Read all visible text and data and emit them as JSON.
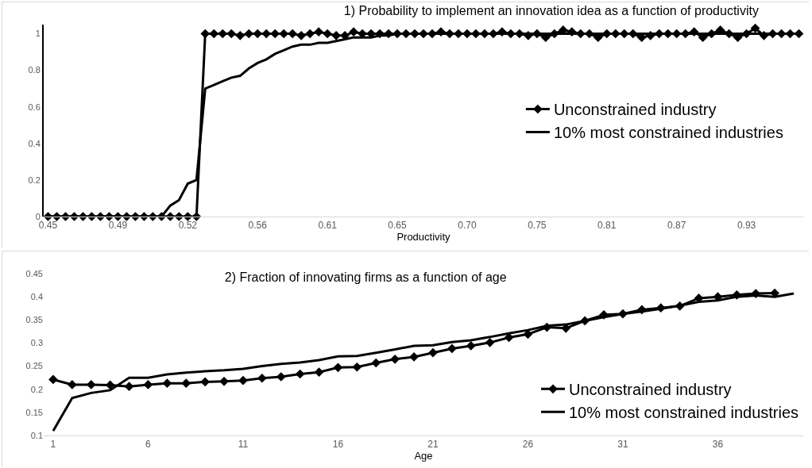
{
  "chart_data": [
    {
      "type": "line",
      "title": "1) Probability to implement an innovation idea as a function of productivity",
      "xlabel": "Productivity",
      "categories": [
        "0.45",
        null,
        null,
        null,
        null,
        null,
        null,
        null,
        "0.49",
        null,
        null,
        null,
        null,
        null,
        null,
        null,
        "0.52",
        null,
        null,
        null,
        null,
        null,
        null,
        null,
        "0.56",
        null,
        null,
        null,
        null,
        null,
        null,
        null,
        "0.61",
        null,
        null,
        null,
        null,
        null,
        null,
        null,
        "0.65",
        null,
        null,
        null,
        null,
        null,
        null,
        null,
        "0.70",
        null,
        null,
        null,
        null,
        null,
        null,
        null,
        "0.75",
        null,
        null,
        null,
        null,
        null,
        null,
        null,
        "0.81",
        null,
        null,
        null,
        null,
        null,
        null,
        null,
        "0.87",
        null,
        null,
        null,
        null,
        null,
        null,
        null,
        "0.93",
        null,
        null,
        null,
        null,
        null,
        null
      ],
      "series": [
        {
          "name": "Unconstrained industry",
          "color": "#000000",
          "marker": "diamond",
          "values": [
            0,
            0,
            0,
            0,
            0,
            0,
            0,
            0,
            0,
            0,
            0,
            0,
            0,
            0,
            0,
            0,
            0,
            0,
            1,
            1,
            1,
            1,
            0.99,
            1,
            1,
            1,
            1,
            1,
            1,
            0.99,
            1,
            1.01,
            1,
            0.99,
            0.99,
            1.01,
            1,
            1,
            1,
            1,
            1,
            1,
            1,
            1,
            1,
            1.01,
            1,
            1,
            1,
            1,
            1,
            1,
            1.01,
            1,
            1,
            0.99,
            1,
            0.98,
            1,
            1.02,
            1.01,
            1,
            1,
            0.98,
            1,
            1,
            1,
            1,
            0.98,
            0.99,
            1,
            1,
            1,
            1,
            1.01,
            0.98,
            1,
            1.02,
            1,
            0.98,
            1,
            1.03,
            0.99,
            1,
            1,
            1,
            1
          ]
        },
        {
          "name": "10% most constrained industries",
          "color": "#000000",
          "marker": "none",
          "values": [
            0,
            0,
            0,
            0,
            0,
            0,
            0,
            0,
            0,
            0,
            0,
            0,
            0,
            0,
            0.06,
            0.09,
            0.18,
            0.2,
            0.7,
            0.72,
            0.74,
            0.76,
            0.77,
            0.81,
            0.84,
            0.86,
            0.89,
            0.91,
            0.93,
            0.94,
            0.94,
            0.95,
            0.95,
            0.96,
            0.97,
            0.98,
            0.98,
            0.98,
            0.99,
            0.99,
            1,
            1,
            1,
            1,
            1,
            1,
            1,
            1,
            1,
            1,
            1,
            1,
            1,
            1,
            1,
            1,
            1,
            1,
            1,
            1,
            1,
            1,
            1,
            1,
            1,
            1,
            1,
            1,
            1,
            1,
            1,
            1,
            1,
            1,
            1,
            1,
            1,
            1,
            1,
            1,
            1,
            1,
            1,
            1,
            1,
            1,
            1
          ]
        }
      ],
      "ylim": [
        0,
        1.05
      ],
      "yticks": [
        0,
        0.2,
        0.4,
        0.6,
        0.8,
        1
      ],
      "grid": false,
      "legend": "right",
      "line_style": "solid"
    },
    {
      "type": "line",
      "title": "2) Fraction of innovating firms as a function of age",
      "xlabel": "Age",
      "categories": [
        "1",
        null,
        null,
        null,
        null,
        "6",
        null,
        null,
        null,
        null,
        "11",
        null,
        null,
        null,
        null,
        "16",
        null,
        null,
        null,
        null,
        "21",
        null,
        null,
        null,
        null,
        "26",
        null,
        null,
        null,
        null,
        "31",
        null,
        null,
        null,
        null,
        "36",
        null,
        null,
        null,
        null
      ],
      "series": [
        {
          "name": "Unconstrained industry",
          "color": "#000000",
          "marker": "diamond",
          "values": [
            0.221,
            0.21,
            0.21,
            0.209,
            0.206,
            0.21,
            0.213,
            0.213,
            0.216,
            0.217,
            0.219,
            0.224,
            0.227,
            0.233,
            0.237,
            0.247,
            0.248,
            0.257,
            0.265,
            0.27,
            0.279,
            0.288,
            0.294,
            0.301,
            0.312,
            0.319,
            0.334,
            0.332,
            0.348,
            0.361,
            0.363,
            0.372,
            0.376,
            0.38,
            0.397,
            0.4,
            0.404,
            0.407,
            0.408,
            null
          ]
        },
        {
          "name": "10% most constrained industries",
          "color": "#000000",
          "marker": "none",
          "values": [
            0.11,
            0.181,
            0.192,
            0.198,
            0.225,
            0.225,
            0.232,
            0.236,
            0.239,
            0.241,
            0.244,
            0.25,
            0.255,
            0.258,
            0.263,
            0.271,
            0.272,
            0.279,
            0.286,
            0.294,
            0.295,
            0.302,
            0.306,
            0.313,
            0.321,
            0.328,
            0.337,
            0.34,
            0.348,
            0.356,
            0.363,
            0.368,
            0.374,
            0.381,
            0.389,
            0.392,
            0.4,
            0.403,
            0.4,
            0.407
          ]
        }
      ],
      "ylim": [
        0.1,
        0.45
      ],
      "yticks": [
        0.1,
        0.15,
        0.2,
        0.25,
        0.3,
        0.35,
        0.4,
        0.45
      ],
      "grid": false,
      "legend": "bottom right",
      "line_style": "solid"
    }
  ]
}
